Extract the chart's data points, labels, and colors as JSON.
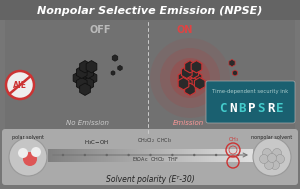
{
  "bg_color": "#7a7a7a",
  "title_normal_color": "#ffffff",
  "title_highlight_color": "#e87878",
  "off_label": "OFF",
  "on_label": "ON",
  "no_emission_label": "No Emission",
  "emission_label": "Emission",
  "aie_label": "AIE",
  "security_ink_label": "Time-dependent security ink",
  "cnbpsre_text": "CNBPSRE",
  "solvent_label": "Solvent polarity (Eᵀ-30)",
  "polar_solvent_label": "polar solvent",
  "nonpolar_solvent_label": "nonpolar solvent",
  "red_color": "#cc3333",
  "pink_glow": "#e87878",
  "off_color": "#aaaaaa",
  "on_color": "#dd4444",
  "ink_bg": "#1a6070",
  "ink_text_color": "#44cccc",
  "molecule_dark": "#282828",
  "molecule_edge_dark": "#111111",
  "molecule_edge_glow": "#cc4444",
  "glow_color": "#cc2222",
  "strip_bg": "#aaaaaa",
  "strip_grad_left": "#888888",
  "strip_grad_right": "#dddddd",
  "dot_color": "#666666",
  "solvent_label_color": "#222222"
}
